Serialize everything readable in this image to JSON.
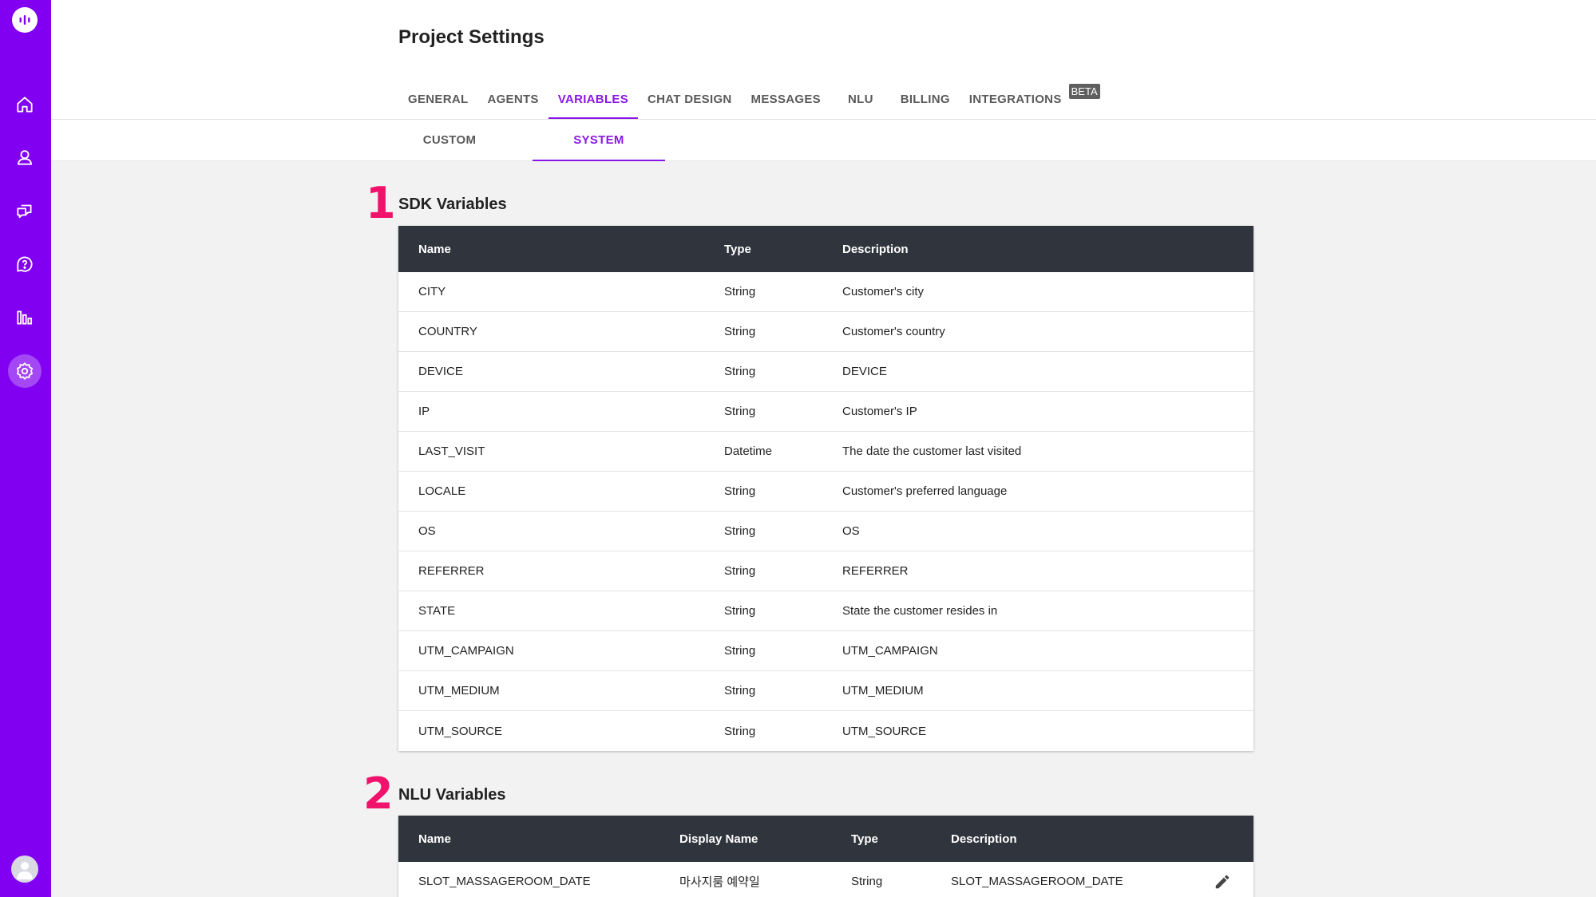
{
  "app": {
    "accent_color": "#8a17e8",
    "sidebar_color": "#8200f2"
  },
  "sidebar": {
    "items": [
      {
        "icon": "home-icon"
      },
      {
        "icon": "user-icon"
      },
      {
        "icon": "chat-icon"
      },
      {
        "icon": "help-icon"
      },
      {
        "icon": "chart-icon"
      },
      {
        "icon": "settings-icon",
        "active": true
      }
    ]
  },
  "header": {
    "title": "Project Settings",
    "tabs": [
      {
        "label": "GENERAL"
      },
      {
        "label": "AGENTS"
      },
      {
        "label": "VARIABLES",
        "active": true
      },
      {
        "label": "CHAT DESIGN"
      },
      {
        "label": "MESSAGES"
      },
      {
        "label": "NLU"
      },
      {
        "label": "BILLING"
      },
      {
        "label": "INTEGRATIONS",
        "badge": "BETA"
      }
    ]
  },
  "subtabs": [
    {
      "label": "CUSTOM"
    },
    {
      "label": "SYSTEM",
      "active": true
    }
  ],
  "sdk": {
    "marker": "1",
    "title": "SDK Variables",
    "columns": [
      "Name",
      "Type",
      "Description"
    ],
    "rows": [
      [
        "CITY",
        "String",
        "Customer's city"
      ],
      [
        "COUNTRY",
        "String",
        "Customer's country"
      ],
      [
        "DEVICE",
        "String",
        "DEVICE"
      ],
      [
        "IP",
        "String",
        "Customer's IP"
      ],
      [
        "LAST_VISIT",
        "Datetime",
        "The date the customer last visited"
      ],
      [
        "LOCALE",
        "String",
        "Customer's preferred language"
      ],
      [
        "OS",
        "String",
        "OS"
      ],
      [
        "REFERRER",
        "String",
        "REFERRER"
      ],
      [
        "STATE",
        "String",
        "State the customer resides in"
      ],
      [
        "UTM_CAMPAIGN",
        "String",
        "UTM_CAMPAIGN"
      ],
      [
        "UTM_MEDIUM",
        "String",
        "UTM_MEDIUM"
      ],
      [
        "UTM_SOURCE",
        "String",
        "UTM_SOURCE"
      ]
    ]
  },
  "nlu": {
    "marker": "2",
    "title": "NLU Variables",
    "columns": [
      "Name",
      "Display Name",
      "Type",
      "Description"
    ],
    "rows": [
      [
        "SLOT_MASSAGEROOM_DATE",
        "마사지룸 예약일",
        "String",
        "SLOT_MASSAGEROOM_DATE"
      ]
    ]
  }
}
